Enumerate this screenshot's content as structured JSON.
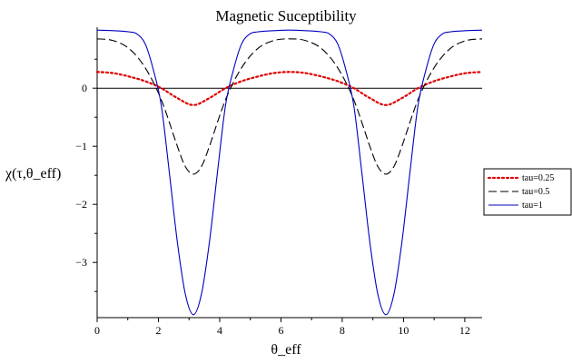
{
  "chart_data": {
    "type": "line",
    "title": "Magnetic Suceptibility",
    "xlabel": "θ_eff",
    "ylabel": "χ(τ,θ_eff)",
    "xlim": [
      0,
      12.566
    ],
    "ylim": [
      -3.95,
      1.05
    ],
    "x_ticks": [
      0,
      2,
      4,
      6,
      8,
      10,
      12
    ],
    "y_ticks": [
      0,
      -1,
      -2,
      -3
    ],
    "x_tick_labels": [
      "0",
      "2",
      "4",
      "6",
      "8",
      "10",
      "12"
    ],
    "y_tick_labels": [
      "0",
      "−1",
      "−2",
      "−3"
    ],
    "legend_position": "right",
    "series": [
      {
        "name": "tau=0.25",
        "color": "#e00000",
        "style": "dotted",
        "x": [
          0.0,
          0.524,
          1.047,
          1.571,
          2.094,
          2.618,
          3.142,
          3.665,
          4.189,
          4.712,
          5.236,
          5.76,
          6.283,
          6.807,
          7.33,
          7.854,
          8.378,
          8.901,
          9.425,
          9.948,
          10.472,
          10.996,
          11.519,
          12.043,
          12.566
        ],
        "values": [
          0.28,
          0.26,
          0.2,
          0.12,
          0.0,
          -0.17,
          -0.29,
          -0.17,
          0.0,
          0.12,
          0.2,
          0.26,
          0.28,
          0.26,
          0.2,
          0.12,
          0.0,
          -0.17,
          -0.29,
          -0.17,
          0.0,
          0.12,
          0.2,
          0.26,
          0.28
        ]
      },
      {
        "name": "tau=0.5",
        "color": "#000000",
        "style": "dashed",
        "x": [
          0.0,
          0.524,
          1.047,
          1.571,
          2.094,
          2.618,
          2.88,
          3.142,
          3.403,
          3.665,
          4.189,
          4.712,
          5.236,
          5.76,
          6.283,
          6.807,
          7.33,
          7.854,
          8.378,
          8.901,
          9.163,
          9.425,
          9.686,
          9.948,
          10.472,
          10.996,
          11.519,
          12.043,
          12.566
        ],
        "values": [
          0.85,
          0.82,
          0.68,
          0.35,
          -0.2,
          -1.0,
          -1.35,
          -1.48,
          -1.35,
          -1.0,
          -0.2,
          0.35,
          0.68,
          0.82,
          0.85,
          0.82,
          0.68,
          0.35,
          -0.2,
          -1.0,
          -1.35,
          -1.48,
          -1.35,
          -1.0,
          -0.2,
          0.35,
          0.68,
          0.82,
          0.85
        ]
      },
      {
        "name": "tau=1",
        "color": "#0000c0",
        "style": "solid",
        "x": [
          0.0,
          0.524,
          1.047,
          1.309,
          1.571,
          1.833,
          2.094,
          2.356,
          2.618,
          2.88,
          3.142,
          3.403,
          3.665,
          3.927,
          4.189,
          4.451,
          4.712,
          4.974,
          5.236,
          5.76,
          6.283,
          6.807,
          7.33,
          7.592,
          7.854,
          8.116,
          8.378,
          8.639,
          8.901,
          9.163,
          9.425,
          9.686,
          9.948,
          10.21,
          10.472,
          10.734,
          10.996,
          11.257,
          11.519,
          12.043,
          12.566
        ],
        "values": [
          1.0,
          0.99,
          0.97,
          0.93,
          0.76,
          0.32,
          -0.3,
          -1.45,
          -2.65,
          -3.55,
          -3.9,
          -3.55,
          -2.65,
          -1.45,
          -0.3,
          0.32,
          0.76,
          0.93,
          0.97,
          0.99,
          1.0,
          0.99,
          0.97,
          0.93,
          0.76,
          0.32,
          -0.3,
          -1.45,
          -2.65,
          -3.55,
          -3.9,
          -3.55,
          -2.65,
          -1.45,
          -0.3,
          0.32,
          0.76,
          0.93,
          0.97,
          0.99,
          1.0
        ]
      }
    ]
  }
}
